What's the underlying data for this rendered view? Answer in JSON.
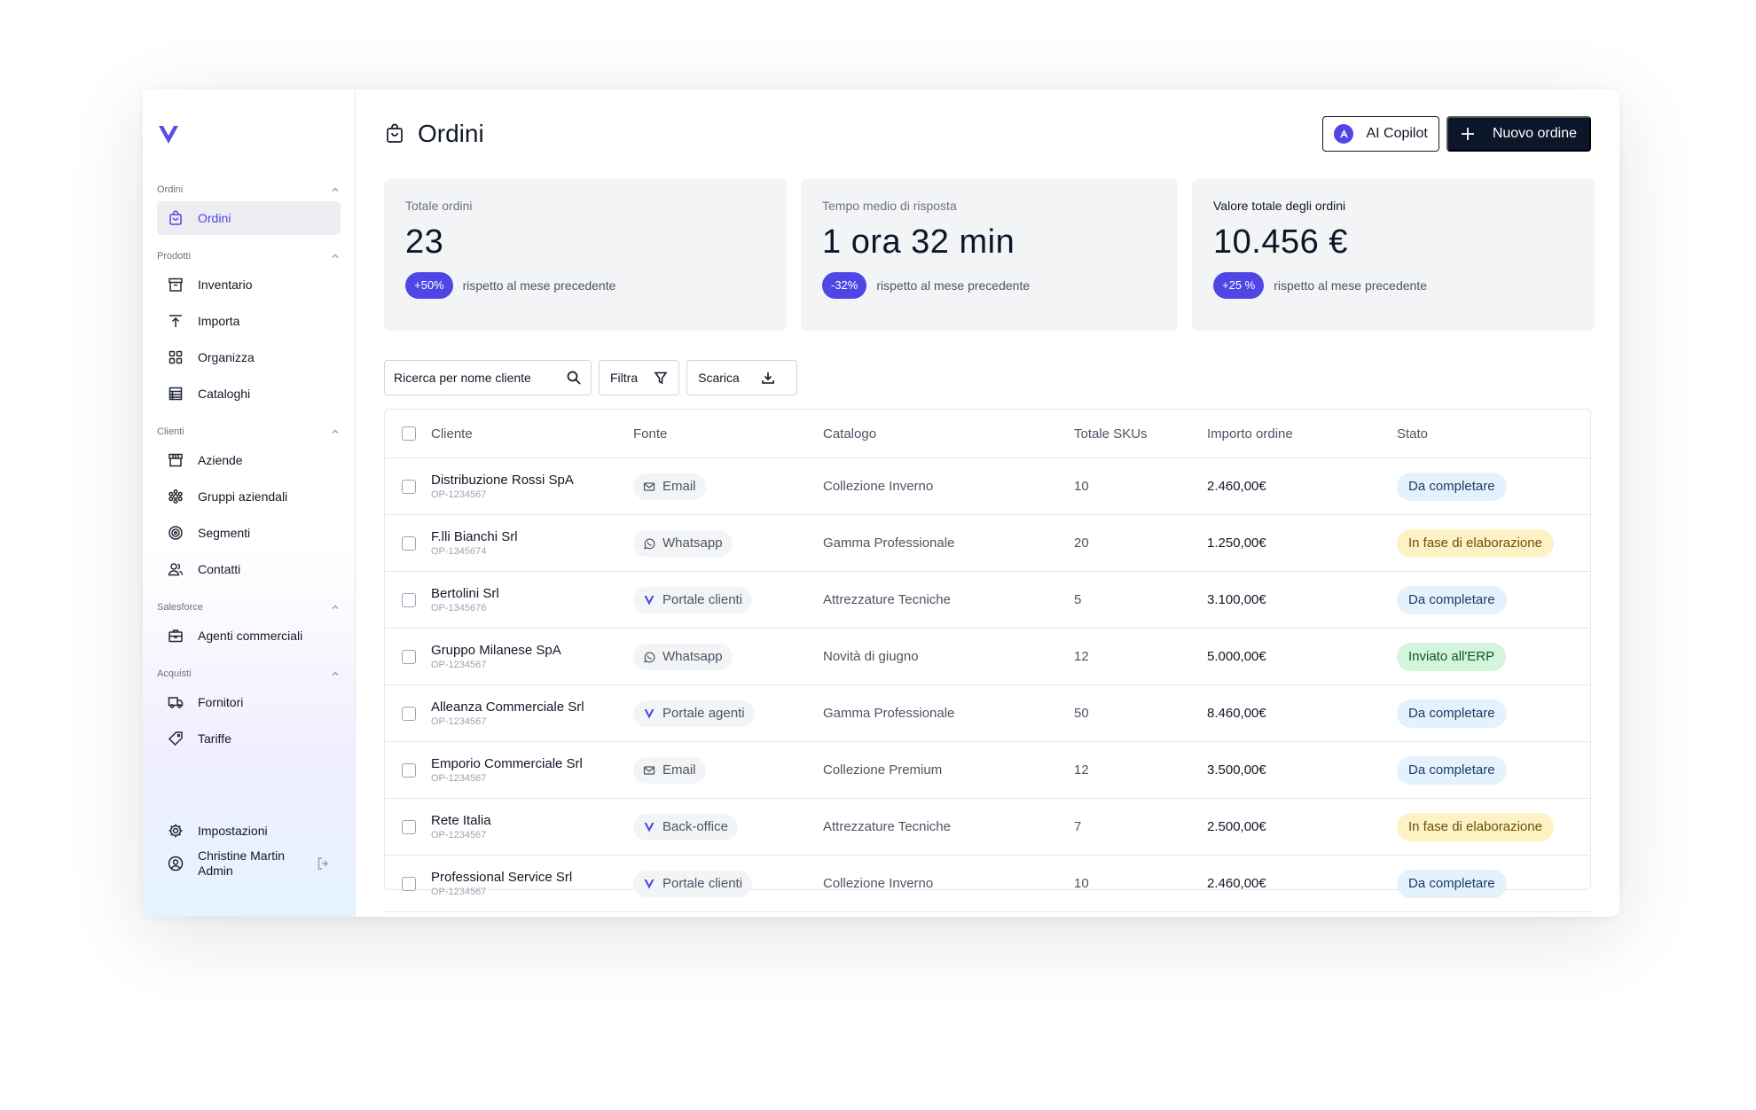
{
  "sidebar": {
    "groups": [
      {
        "title": "Ordini",
        "items": [
          {
            "label": "Ordini",
            "icon": "bag-icon",
            "active": true
          }
        ]
      },
      {
        "title": "Prodotti",
        "items": [
          {
            "label": "Inventario",
            "icon": "archive-icon"
          },
          {
            "label": "Importa",
            "icon": "import-icon"
          },
          {
            "label": "Organizza",
            "icon": "grid-icon"
          },
          {
            "label": "Cataloghi",
            "icon": "catalog-icon"
          }
        ]
      },
      {
        "title": "Clienti",
        "items": [
          {
            "label": "Aziende",
            "icon": "store-icon"
          },
          {
            "label": "Gruppi aziendali",
            "icon": "group-icon"
          },
          {
            "label": "Segmenti",
            "icon": "target-icon"
          },
          {
            "label": "Contatti",
            "icon": "users-icon"
          }
        ]
      },
      {
        "title": "Salesforce",
        "items": [
          {
            "label": "Agenti commerciali",
            "icon": "briefcase-icon"
          }
        ]
      },
      {
        "title": "Acquisti",
        "items": [
          {
            "label": "Fornitori",
            "icon": "truck-icon"
          },
          {
            "label": "Tariffe",
            "icon": "tag-icon"
          }
        ]
      }
    ],
    "settings_label": "Impostazioni",
    "user_name": "Christine Martin",
    "user_role": "Admin"
  },
  "header": {
    "title": "Ordini",
    "copilot_label": "AI Copilot",
    "new_order_label": "Nuovo ordine"
  },
  "stats": [
    {
      "label": "Totale ordini",
      "value": "23",
      "delta": "+50%",
      "note": "rispetto al mese precedente"
    },
    {
      "label": "Tempo medio di risposta",
      "value": "1 ora 32 min",
      "delta": "-32%",
      "note": "rispetto al mese precedente"
    },
    {
      "label": "Valore totale degli ordini",
      "value": "10.456 €",
      "delta": "+25 %",
      "note": "rispetto al mese precedente"
    }
  ],
  "toolbar": {
    "search_placeholder": "Ricerca per nome cliente",
    "filter_label": "Filtra",
    "download_label": "Scarica"
  },
  "table": {
    "columns": [
      "Cliente",
      "Fonte",
      "Catalogo",
      "Totale SKUs",
      "Importo ordine",
      "Stato"
    ],
    "rows": [
      {
        "client": "Distribuzione Rossi SpA",
        "code": "OP-1234567",
        "source": "Email",
        "source_icon": "mail-icon",
        "catalog": "Collezione Inverno",
        "skus": "10",
        "amount": "2.460,00€",
        "status": "Da completare",
        "status_type": "blue"
      },
      {
        "client": "F.lli Bianchi Srl",
        "code": "OP-1345674",
        "source": "Whatsapp",
        "source_icon": "whatsapp-icon",
        "catalog": "Gamma Professionale",
        "skus": "20",
        "amount": "1.250,00€",
        "status": "In fase di elaborazione",
        "status_type": "yellow"
      },
      {
        "client": "Bertolini Srl",
        "code": "OP-1345676",
        "source": "Portale clienti",
        "source_icon": "portal-icon",
        "catalog": "Attrezzature Tecniche",
        "skus": "5",
        "amount": "3.100,00€",
        "status": "Da completare",
        "status_type": "blue"
      },
      {
        "client": "Gruppo Milanese SpA",
        "code": "OP-1234567",
        "source": "Whatsapp",
        "source_icon": "whatsapp-icon",
        "catalog": "Novità di giugno",
        "skus": "12",
        "amount": "5.000,00€",
        "status": "Inviato all'ERP",
        "status_type": "green"
      },
      {
        "client": "Alleanza Commerciale Srl",
        "code": "OP-1234567",
        "source": "Portale agenti",
        "source_icon": "portal-icon",
        "catalog": "Gamma Professionale",
        "skus": "50",
        "amount": "8.460,00€",
        "status": "Da completare",
        "status_type": "blue"
      },
      {
        "client": "Emporio Commerciale Srl",
        "code": "OP-1234567",
        "source": "Email",
        "source_icon": "mail-icon",
        "catalog": "Collezione Premium",
        "skus": "12",
        "amount": "3.500,00€",
        "status": "Da completare",
        "status_type": "blue"
      },
      {
        "client": "Rete Italia",
        "code": "OP-1234567",
        "source": "Back-office",
        "source_icon": "portal-icon",
        "catalog": "Attrezzature Tecniche",
        "skus": "7",
        "amount": "2.500,00€",
        "status": "In fase di elaborazione",
        "status_type": "yellow"
      },
      {
        "client": "Professional Service Srl",
        "code": "OP-1234567",
        "source": "Portale clienti",
        "source_icon": "portal-icon",
        "catalog": "Collezione Inverno",
        "skus": "10",
        "amount": "2.460,00€",
        "status": "Da completare",
        "status_type": "blue"
      }
    ]
  },
  "colors": {
    "accent": "#4f46e5",
    "dark": "#0b1628"
  }
}
